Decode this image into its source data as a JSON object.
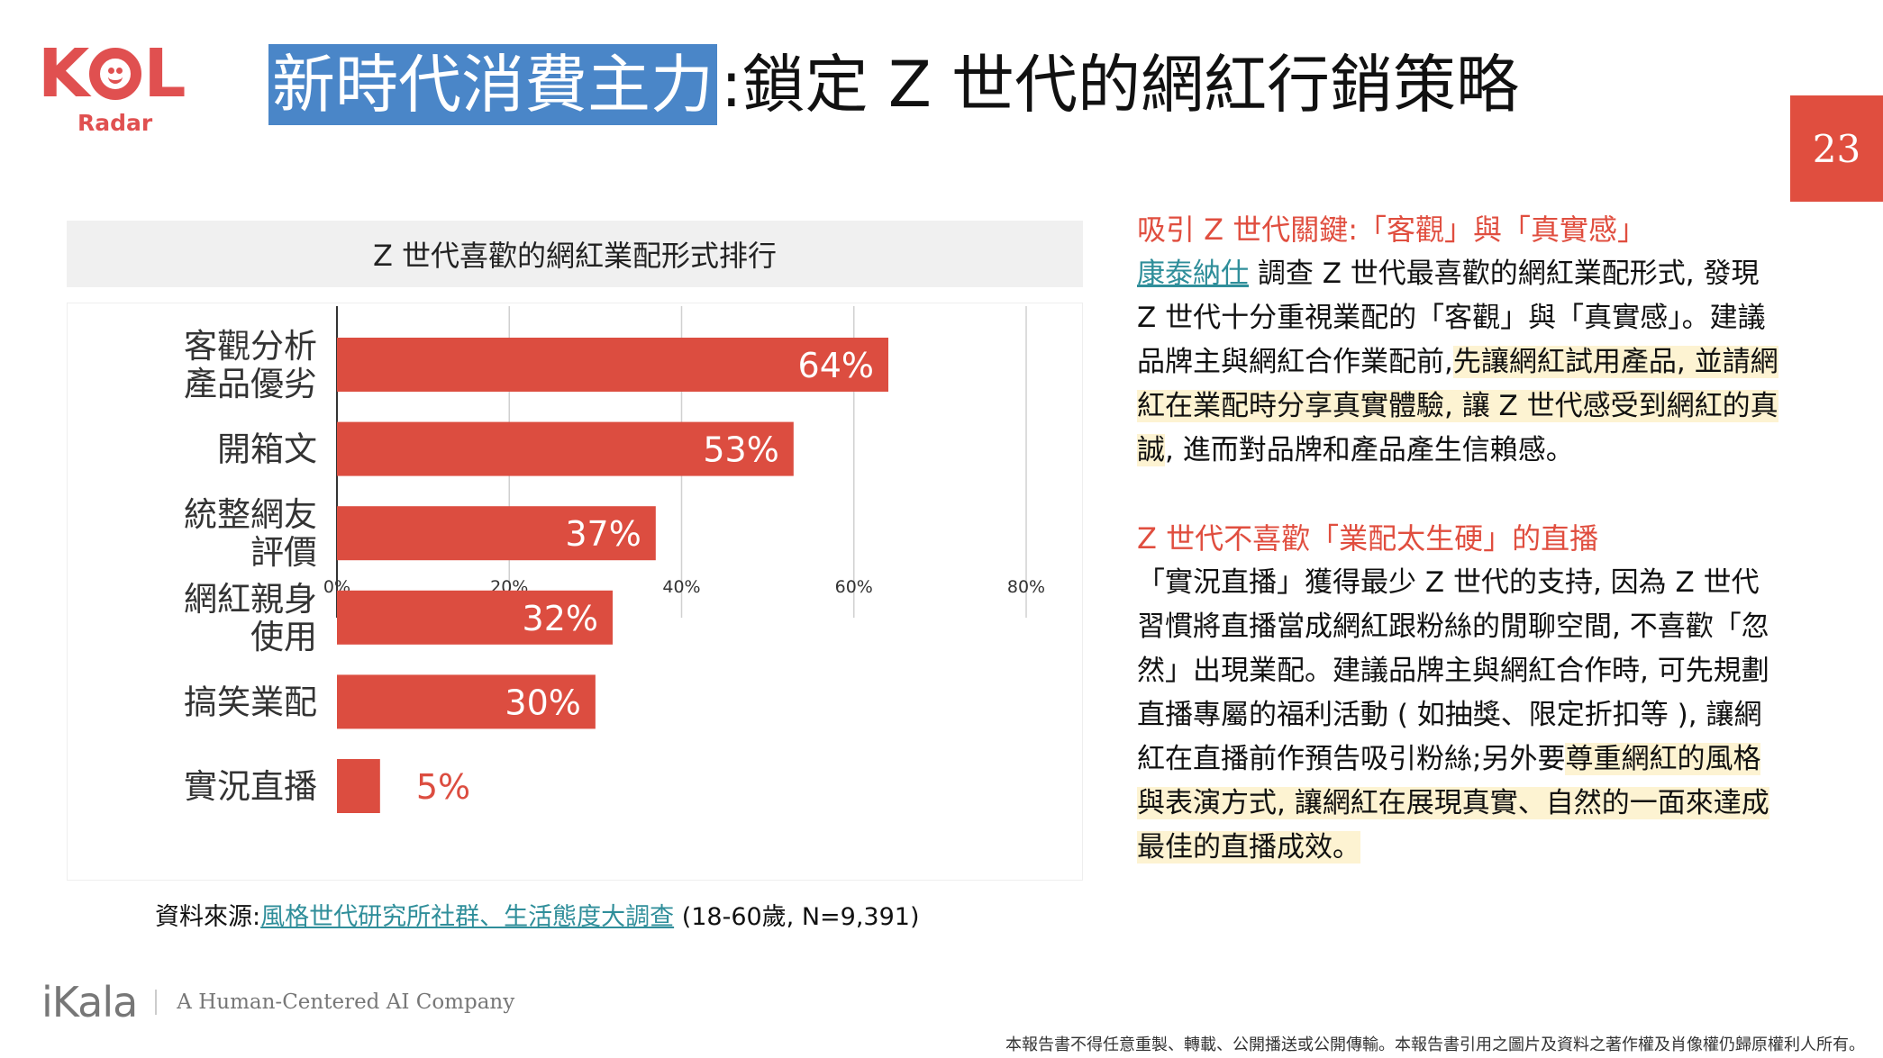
{
  "logo": {
    "kol_text_k": "K",
    "kol_text_l": "L",
    "radar_text": "Radar",
    "color": "#e05050"
  },
  "header": {
    "title_highlight": "新時代消費主力",
    "title_rest": ":鎖定 Z 世代的網紅行銷策略",
    "highlight_color": "#4a86c8",
    "page_number": "23",
    "page_number_bg": "#e04e3f"
  },
  "chart": {
    "title": "Z 世代喜歡的網紅業配形式排行",
    "source_prefix": "資料來源:",
    "source_link": "風格世代研究所社群、生活態度大調查",
    "source_suffix": " (18-60歲, N=9,391)"
  },
  "chart_data": {
    "type": "bar",
    "orientation": "horizontal",
    "title": "Z 世代喜歡的網紅業配形式排行",
    "categories": [
      [
        "客觀分析",
        "產品優劣"
      ],
      [
        "開箱文"
      ],
      [
        "統整網友",
        "評價"
      ],
      [
        "網紅親身",
        "使用"
      ],
      [
        "搞笑業配"
      ],
      [
        "實況直播"
      ]
    ],
    "values": [
      64,
      53,
      37,
      32,
      30,
      5
    ],
    "data_labels": [
      "64%",
      "53%",
      "37%",
      "32%",
      "30%",
      "5%"
    ],
    "xticks": [
      "0%",
      "20%",
      "40%",
      "60%",
      "80%"
    ],
    "xlim": [
      0,
      80
    ],
    "grid": true,
    "bar_color": "#dc4d40"
  },
  "right_panel": {
    "heading1": "吸引 Z 世代關鍵:「客觀」與「真實感」",
    "p1_link": "康泰納仕",
    "p1_text": " 調查 Z 世代最喜歡的網紅業配形式, 發現 Z 世代十分重視業配的「客觀」與「真實感」。建議品牌主與網紅合作業配前,",
    "p1_highlight": "先讓網紅試用產品, 並請網紅在業配時分享真實體驗, 讓 Z 世代感受到網紅的真誠",
    "p1_end": ", 進而對品牌和產品產生信賴感。",
    "heading2": "Z 世代不喜歡「業配太生硬」的直播",
    "p2_text": "「實況直播」獲得最少 Z 世代的支持, 因為 Z 世代習慣將直播當成網紅跟粉絲的閒聊空間, 不喜歡「忽然」出現業配。建議品牌主與網紅合作時, 可先規劃直播專屬的福利活動 ( 如抽獎、限定折扣等 ), 讓網紅在直播前作預告吸引粉絲;另外要",
    "p2_highlight": "尊重網紅的風格與表演方式, 讓網紅在展現真實、自然的一面來達成最佳的直播成效。"
  },
  "footer": {
    "brand": "iKala",
    "tagline": "A Human-Centered AI Company",
    "disclaimer": "本報告書不得任意重製、轉載、公開播送或公開傳輸。本報告書引用之圖片及資料之著作權及肖像權仍歸原權利人所有。"
  }
}
